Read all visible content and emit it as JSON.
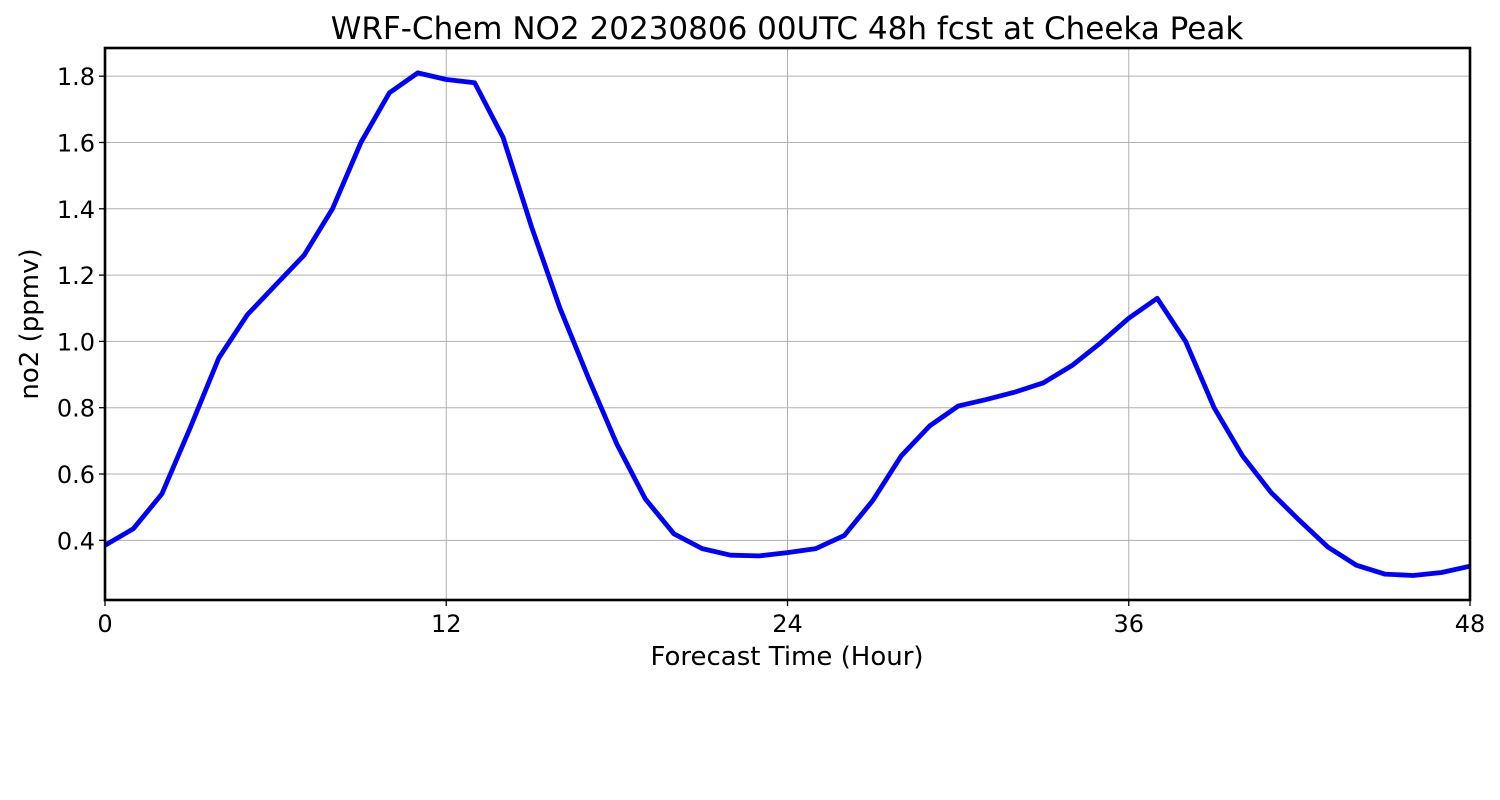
{
  "chart_data": {
    "type": "line",
    "title": "WRF-Chem NO2  20230806 00UTC 48h fcst at Cheeka Peak",
    "xlabel": "Forecast Time (Hour)",
    "ylabel": "no2  (ppmv)",
    "xlim": [
      0,
      48
    ],
    "ylim": [
      0.22,
      1.885
    ],
    "xticks": [
      0,
      12,
      24,
      36,
      48
    ],
    "xtick_labels": [
      "0",
      "12",
      "24",
      "36",
      "48"
    ],
    "yticks": [
      0.4,
      0.6,
      0.8,
      1.0,
      1.2,
      1.4,
      1.6,
      1.8
    ],
    "ytick_labels": [
      "0.4",
      "0.6",
      "0.8",
      "1.0",
      "1.2",
      "1.4",
      "1.6",
      "1.8"
    ],
    "grid": true,
    "legend": "none",
    "series": [
      {
        "color": "#0000ff",
        "x": [
          0,
          1,
          2,
          3,
          4,
          5,
          6,
          7,
          8,
          9,
          10,
          11,
          12,
          13,
          14,
          15,
          16,
          17,
          18,
          19,
          20,
          21,
          22,
          23,
          24,
          25,
          26,
          27,
          28,
          29,
          30,
          31,
          32,
          33,
          34,
          35,
          36,
          37,
          38,
          39,
          40,
          41,
          42,
          43,
          44,
          45,
          46,
          47,
          48
        ],
        "y": [
          0.385,
          0.435,
          0.54,
          0.74,
          0.95,
          1.08,
          1.17,
          1.26,
          1.4,
          1.6,
          1.75,
          1.81,
          1.79,
          1.78,
          1.615,
          1.345,
          1.1,
          0.89,
          0.69,
          0.525,
          0.42,
          0.375,
          0.355,
          0.353,
          0.363,
          0.375,
          0.415,
          0.52,
          0.655,
          0.745,
          0.805,
          0.825,
          0.847,
          0.875,
          0.927,
          0.995,
          1.07,
          1.13,
          1.0,
          0.8,
          0.655,
          0.545,
          0.46,
          0.38,
          0.325,
          0.298,
          0.294,
          0.303,
          0.322
        ]
      }
    ]
  }
}
